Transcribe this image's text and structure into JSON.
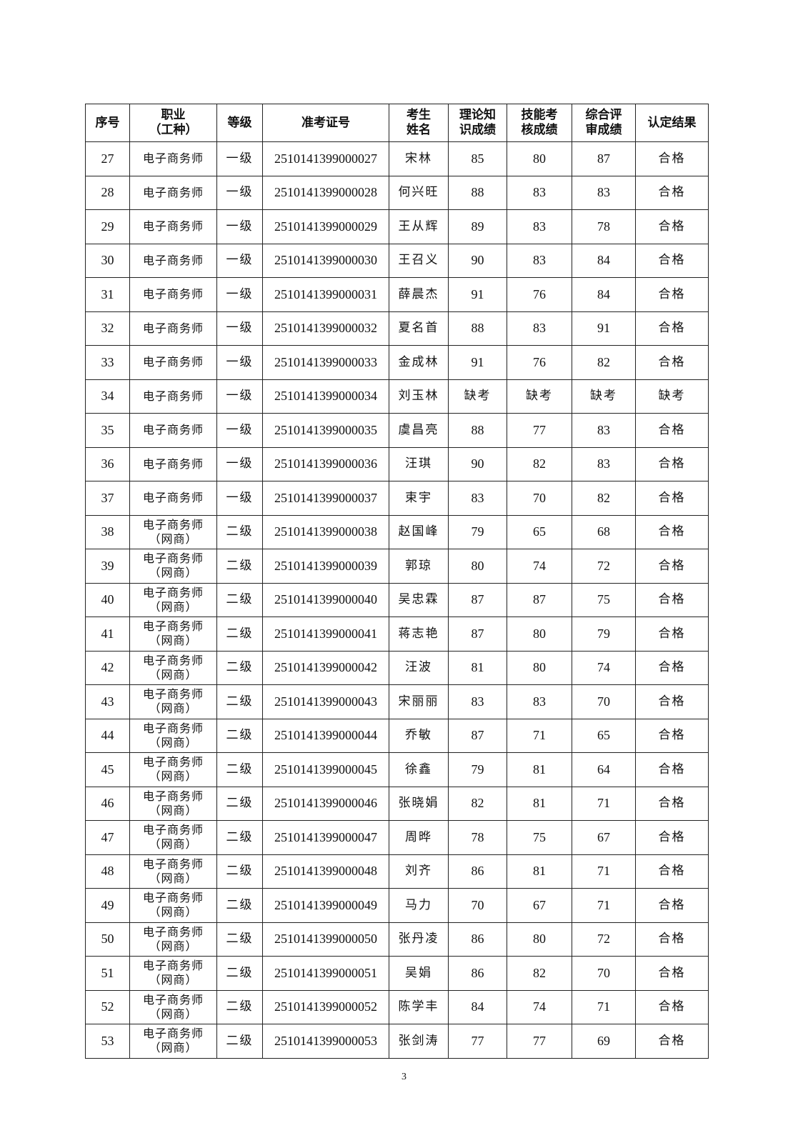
{
  "headers": [
    {
      "l1": "序号",
      "l2": ""
    },
    {
      "l1": "职业",
      "l2": "（工种）"
    },
    {
      "l1": "等级",
      "l2": ""
    },
    {
      "l1": "准考证号",
      "l2": ""
    },
    {
      "l1": "考生",
      "l2": "姓名"
    },
    {
      "l1": "理论知",
      "l2": "识成绩"
    },
    {
      "l1": "技能考",
      "l2": "核成绩"
    },
    {
      "l1": "综合评",
      "l2": "审成绩"
    },
    {
      "l1": "认定结果",
      "l2": ""
    }
  ],
  "rows": [
    [
      "27",
      "电子商务师",
      "",
      "一级",
      "2510141399000027",
      "宋林",
      "85",
      "80",
      "87",
      "合格"
    ],
    [
      "28",
      "电子商务师",
      "",
      "一级",
      "2510141399000028",
      "何兴旺",
      "88",
      "83",
      "83",
      "合格"
    ],
    [
      "29",
      "电子商务师",
      "",
      "一级",
      "2510141399000029",
      "王从辉",
      "89",
      "83",
      "78",
      "合格"
    ],
    [
      "30",
      "电子商务师",
      "",
      "一级",
      "2510141399000030",
      "王召义",
      "90",
      "83",
      "84",
      "合格"
    ],
    [
      "31",
      "电子商务师",
      "",
      "一级",
      "2510141399000031",
      "薛晨杰",
      "91",
      "76",
      "84",
      "合格"
    ],
    [
      "32",
      "电子商务师",
      "",
      "一级",
      "2510141399000032",
      "夏名首",
      "88",
      "83",
      "91",
      "合格"
    ],
    [
      "33",
      "电子商务师",
      "",
      "一级",
      "2510141399000033",
      "金成林",
      "91",
      "76",
      "82",
      "合格"
    ],
    [
      "34",
      "电子商务师",
      "",
      "一级",
      "2510141399000034",
      "刘玉林",
      "缺考",
      "缺考",
      "缺考",
      "缺考"
    ],
    [
      "35",
      "电子商务师",
      "",
      "一级",
      "2510141399000035",
      "虞昌亮",
      "88",
      "77",
      "83",
      "合格"
    ],
    [
      "36",
      "电子商务师",
      "",
      "一级",
      "2510141399000036",
      "汪琪",
      "90",
      "82",
      "83",
      "合格"
    ],
    [
      "37",
      "电子商务师",
      "",
      "一级",
      "2510141399000037",
      "束宇",
      "83",
      "70",
      "82",
      "合格"
    ],
    [
      "38",
      "电子商务师",
      "（网商）",
      "二级",
      "2510141399000038",
      "赵国峰",
      "79",
      "65",
      "68",
      "合格"
    ],
    [
      "39",
      "电子商务师",
      "（网商）",
      "二级",
      "2510141399000039",
      "郭琼",
      "80",
      "74",
      "72",
      "合格"
    ],
    [
      "40",
      "电子商务师",
      "（网商）",
      "二级",
      "2510141399000040",
      "吴忠霖",
      "87",
      "87",
      "75",
      "合格"
    ],
    [
      "41",
      "电子商务师",
      "（网商）",
      "二级",
      "2510141399000041",
      "蒋志艳",
      "87",
      "80",
      "79",
      "合格"
    ],
    [
      "42",
      "电子商务师",
      "（网商）",
      "二级",
      "2510141399000042",
      "汪波",
      "81",
      "80",
      "74",
      "合格"
    ],
    [
      "43",
      "电子商务师",
      "（网商）",
      "二级",
      "2510141399000043",
      "宋丽丽",
      "83",
      "83",
      "70",
      "合格"
    ],
    [
      "44",
      "电子商务师",
      "（网商）",
      "二级",
      "2510141399000044",
      "乔敏",
      "87",
      "71",
      "65",
      "合格"
    ],
    [
      "45",
      "电子商务师",
      "（网商）",
      "二级",
      "2510141399000045",
      "徐鑫",
      "79",
      "81",
      "64",
      "合格"
    ],
    [
      "46",
      "电子商务师",
      "（网商）",
      "二级",
      "2510141399000046",
      "张晓娟",
      "82",
      "81",
      "71",
      "合格"
    ],
    [
      "47",
      "电子商务师",
      "（网商）",
      "二级",
      "2510141399000047",
      "周晔",
      "78",
      "75",
      "67",
      "合格"
    ],
    [
      "48",
      "电子商务师",
      "（网商）",
      "二级",
      "2510141399000048",
      "刘齐",
      "86",
      "81",
      "71",
      "合格"
    ],
    [
      "49",
      "电子商务师",
      "（网商）",
      "二级",
      "2510141399000049",
      "马力",
      "70",
      "67",
      "71",
      "合格"
    ],
    [
      "50",
      "电子商务师",
      "（网商）",
      "二级",
      "2510141399000050",
      "张丹凌",
      "86",
      "80",
      "72",
      "合格"
    ],
    [
      "51",
      "电子商务师",
      "（网商）",
      "二级",
      "2510141399000051",
      "吴娟",
      "86",
      "82",
      "70",
      "合格"
    ],
    [
      "52",
      "电子商务师",
      "（网商）",
      "二级",
      "2510141399000052",
      "陈学丰",
      "84",
      "74",
      "71",
      "合格"
    ],
    [
      "53",
      "电子商务师",
      "（网商）",
      "二级",
      "2510141399000053",
      "张剑涛",
      "77",
      "77",
      "69",
      "合格"
    ]
  ],
  "page_number": "3"
}
